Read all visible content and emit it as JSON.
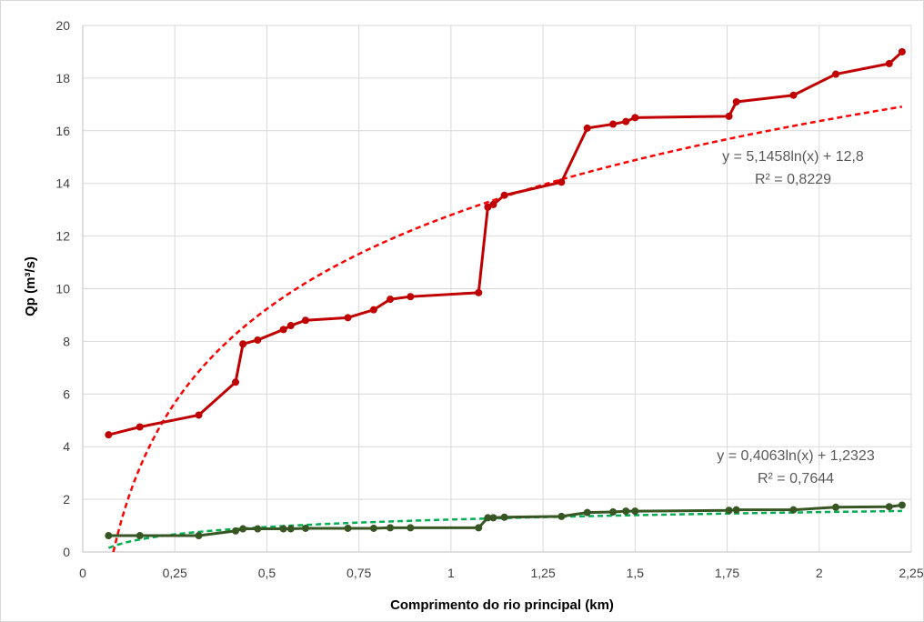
{
  "chart_data": {
    "type": "line",
    "xlabel": "Comprimento do rio principal (km)",
    "ylabel": "Qp (m³/s)",
    "xlim": [
      0,
      2.25
    ],
    "ylim": [
      0,
      20
    ],
    "x_ticks": [
      "0",
      "0,25",
      "0,5",
      "0,75",
      "1",
      "1,25",
      "1,5",
      "1,75",
      "2",
      "2,25"
    ],
    "y_ticks": [
      "0",
      "2",
      "4",
      "6",
      "8",
      "10",
      "12",
      "14",
      "16",
      "18",
      "20"
    ],
    "x_tick_values": [
      0,
      0.25,
      0.5,
      0.75,
      1,
      1.25,
      1.5,
      1.75,
      2,
      2.25
    ],
    "y_tick_values": [
      0,
      2,
      4,
      6,
      8,
      10,
      12,
      14,
      16,
      18,
      20
    ],
    "grid": true,
    "series": [
      {
        "color": "#C00000",
        "x": [
          0.07,
          0.155,
          0.315,
          0.415,
          0.435,
          0.475,
          0.545,
          0.565,
          0.605,
          0.72,
          0.79,
          0.835,
          0.89,
          1.075,
          1.1,
          1.115,
          1.145,
          1.3,
          1.37,
          1.44,
          1.475,
          1.5,
          1.755,
          1.775,
          1.93,
          2.045,
          2.19,
          2.225
        ],
        "y": [
          4.45,
          4.75,
          5.2,
          6.45,
          7.9,
          8.05,
          8.45,
          8.6,
          8.8,
          8.9,
          9.2,
          9.6,
          9.7,
          9.85,
          13.1,
          13.2,
          13.55,
          14.05,
          16.1,
          16.25,
          16.35,
          16.5,
          16.55,
          17.1,
          17.35,
          18.15,
          18.55,
          19.0
        ]
      },
      {
        "color": "#375623",
        "x": [
          0.07,
          0.155,
          0.315,
          0.415,
          0.435,
          0.475,
          0.545,
          0.565,
          0.605,
          0.72,
          0.79,
          0.835,
          0.89,
          1.075,
          1.1,
          1.115,
          1.145,
          1.3,
          1.37,
          1.44,
          1.475,
          1.5,
          1.755,
          1.775,
          1.93,
          2.045,
          2.19,
          2.225
        ],
        "y": [
          0.62,
          0.62,
          0.62,
          0.8,
          0.88,
          0.88,
          0.88,
          0.88,
          0.9,
          0.9,
          0.9,
          0.92,
          0.92,
          0.92,
          1.3,
          1.3,
          1.32,
          1.35,
          1.5,
          1.52,
          1.55,
          1.55,
          1.58,
          1.6,
          1.6,
          1.7,
          1.72,
          1.78
        ]
      }
    ],
    "trendlines": [
      {
        "type": "log",
        "a": 5.1458,
        "b": 12.8,
        "x_range": [
          0.07,
          2.225
        ],
        "color": "#FF0000",
        "equation": "y = 5,1458ln(x) + 12,8",
        "r2": "R² = 0,8229"
      },
      {
        "type": "log",
        "a": 0.4063,
        "b": 1.2323,
        "x_range": [
          0.07,
          2.225
        ],
        "color": "#00B050",
        "equation": "y = 0,4063ln(x) + 1,2323",
        "r2": "R² = 0,7644"
      }
    ]
  }
}
